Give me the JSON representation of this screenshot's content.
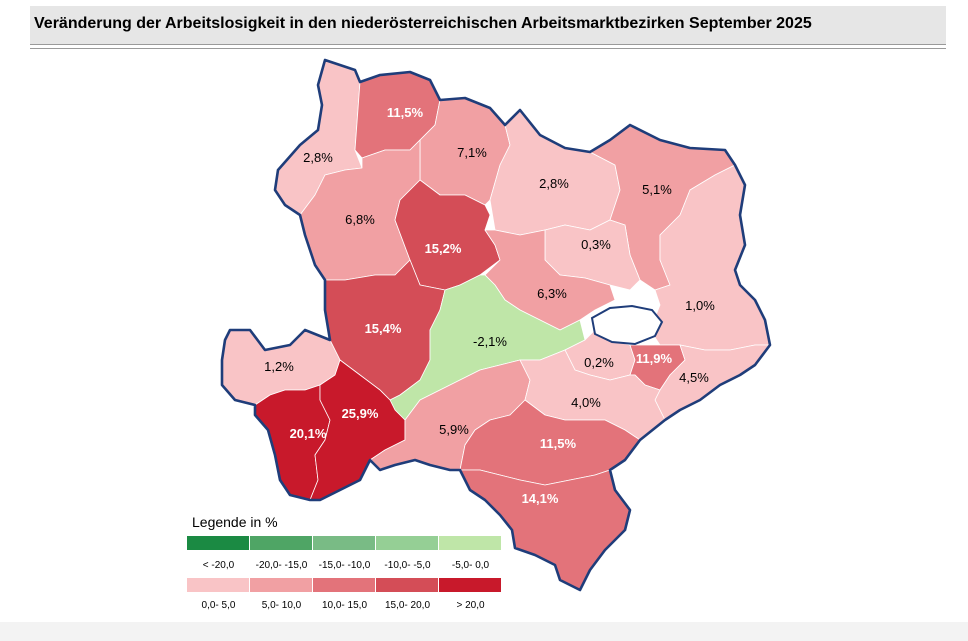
{
  "title": "Veränderung der Arbeitslosigkeit in den niederösterreichischen Arbeitsmarktbezirken September 2025",
  "colors": {
    "pos_0_5": "#f9c4c6",
    "pos_5_10": "#f1a0a3",
    "pos_10_15": "#e3737a",
    "pos_15_20": "#d44d57",
    "pos_20": "#c8192b",
    "neg_0_5": "#bfe6a8",
    "border": "#1f3d7a"
  },
  "districts": [
    {
      "name": "d-north-west",
      "label": "2,8%",
      "cls": "pos_0_5"
    },
    {
      "name": "d-north-top",
      "label": "11,5%",
      "cls": "pos_10_15"
    },
    {
      "name": "d-north-center",
      "label": "7,1%",
      "cls": "pos_5_10"
    },
    {
      "name": "d-north-east",
      "label": "2,8%",
      "cls": "pos_0_5"
    },
    {
      "name": "d-north-far-east",
      "label": "5,1%",
      "cls": "pos_5_10"
    },
    {
      "name": "d-west-mid",
      "label": "6,8%",
      "cls": "pos_5_10"
    },
    {
      "name": "d-center-red",
      "label": "15,2%",
      "cls": "pos_15_20"
    },
    {
      "name": "d-center-east",
      "label": "0,3%",
      "cls": "pos_0_5"
    },
    {
      "name": "d-center-south",
      "label": "6,3%",
      "cls": "pos_5_10"
    },
    {
      "name": "d-east-mid",
      "label": "1,0%",
      "cls": "pos_0_5"
    },
    {
      "name": "d-west-lower",
      "label": "15,4%",
      "cls": "pos_15_20"
    },
    {
      "name": "d-green",
      "label": "-2,1%",
      "cls": "neg_0_5"
    },
    {
      "name": "d-far-west",
      "label": "1,2%",
      "cls": "pos_0_5"
    },
    {
      "name": "d-south-west-1",
      "label": "20,1%",
      "cls": "pos_20"
    },
    {
      "name": "d-south-west-2",
      "label": "25,9%",
      "cls": "pos_20"
    },
    {
      "name": "d-south-center",
      "label": "5,9%",
      "cls": "pos_5_10"
    },
    {
      "name": "d-vienna-south",
      "label": "0,2%",
      "cls": "pos_0_5"
    },
    {
      "name": "d-vienna-se",
      "label": "11,9%",
      "cls": "pos_10_15"
    },
    {
      "name": "d-east-border",
      "label": "4,5%",
      "cls": "pos_0_5"
    },
    {
      "name": "d-south-mid",
      "label": "4,0%",
      "cls": "pos_0_5"
    },
    {
      "name": "d-south-east",
      "label": "11,5%",
      "cls": "pos_10_15"
    },
    {
      "name": "d-south-tip",
      "label": "14,1%",
      "cls": "pos_10_15"
    }
  ],
  "legend": {
    "title": "Legende in %",
    "row1": [
      {
        "label": "< -20,0",
        "color": "#1b8a43"
      },
      {
        "label": "-20,0- -15,0",
        "color": "#4fa565"
      },
      {
        "label": "-15,0- -10,0",
        "color": "#79bb85"
      },
      {
        "label": "-10,0- -5,0",
        "color": "#95cf95"
      },
      {
        "label": "-5,0- 0,0",
        "color": "#bfe6a8"
      }
    ],
    "row2": [
      {
        "label": "0,0- 5,0",
        "color": "#f9c4c6"
      },
      {
        "label": "5,0- 10,0",
        "color": "#f1a0a3"
      },
      {
        "label": "10,0- 15,0",
        "color": "#e3737a"
      },
      {
        "label": "15,0- 20,0",
        "color": "#d44d57"
      },
      {
        "label": "> 20,0",
        "color": "#c8192b"
      }
    ]
  }
}
